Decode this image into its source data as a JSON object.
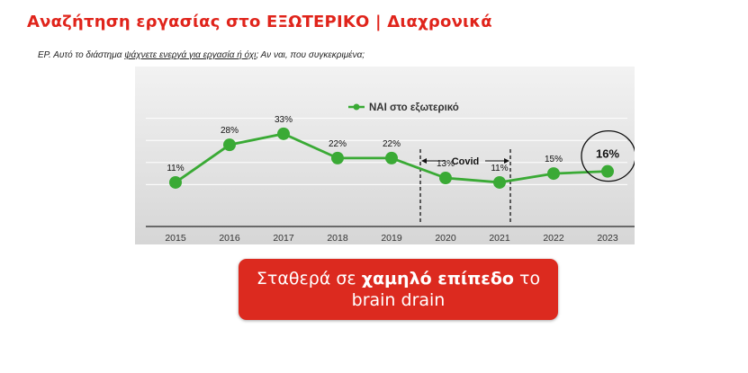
{
  "title": "Αναζήτηση εργασίας στο ΕΞΩΤΕΡΙΚΟ | Διαχρονικά",
  "question": {
    "prefix": "ΕΡ. Αυτό το διάστημα ",
    "highlight": "ψάχνετε ενεργά για εργασία ή όχι",
    "suffix": "; Αν ναι, που συγκεκριμένα;"
  },
  "chart_data": {
    "type": "line",
    "x": [
      "2015",
      "2016",
      "2017",
      "2018",
      "2019",
      "2020",
      "2021",
      "2022",
      "2023"
    ],
    "series": [
      {
        "name": "ΝΑΙ στο εξωτερικό",
        "values": [
          11,
          28,
          33,
          22,
          22,
          13,
          11,
          15,
          16
        ],
        "labels": [
          "11%",
          "28%",
          "33%",
          "22%",
          "22%",
          "13%",
          "11%",
          "15%",
          "16%"
        ]
      }
    ],
    "ylim": [
      0,
      50
    ],
    "grid": true,
    "legend": "top-center",
    "annotation": {
      "text": "Covid",
      "from": "2020",
      "to": "2021"
    },
    "highlight_point": "2023",
    "line_color": "#3aaa35"
  },
  "callout": {
    "line1_pre": "Σταθερά σε ",
    "line1_bold": "χαμηλό επίπεδο",
    "line1_post": " το",
    "line2": "brain drain"
  },
  "colors": {
    "accent": "#e0241b",
    "callout_bg": "#dc2a1f"
  }
}
